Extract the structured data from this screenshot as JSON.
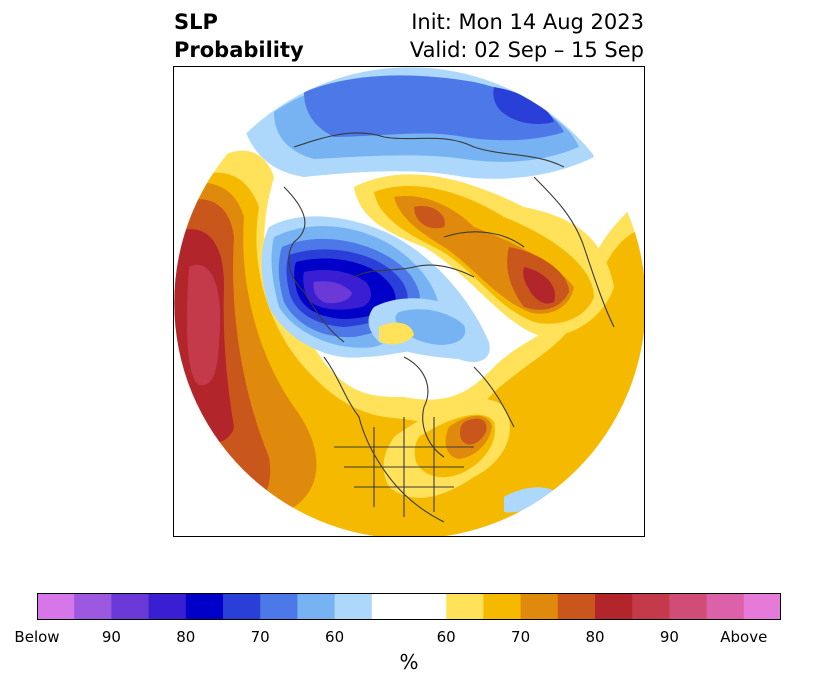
{
  "title": {
    "left_line1": "SLP",
    "left_line2": "Probability",
    "right_line1": "Init: Mon 14 Aug 2023",
    "right_line2": "Valid: 02 Sep – 15 Sep"
  },
  "map": {
    "projection": "north-polar-stereographic",
    "background_color": "#ffffff",
    "coastline_color": "#3a3a3a"
  },
  "colorbar": {
    "colors": [
      "#d776e8",
      "#9c58e0",
      "#6b39d8",
      "#3a1fd2",
      "#0000c8",
      "#2a3fd8",
      "#4d78e8",
      "#77b3f3",
      "#aed8fb",
      "#ffffff",
      "#ffe15a",
      "#f5b900",
      "#e08a0d",
      "#c9561b",
      "#b2252a",
      "#c43a4a",
      "#d04d78",
      "#dc61a8",
      "#e57ad9"
    ],
    "white_span": 2,
    "tick_labels": [
      "Below",
      "90",
      "80",
      "70",
      "60",
      "60",
      "70",
      "80",
      "90",
      "Above"
    ],
    "units": "%"
  }
}
